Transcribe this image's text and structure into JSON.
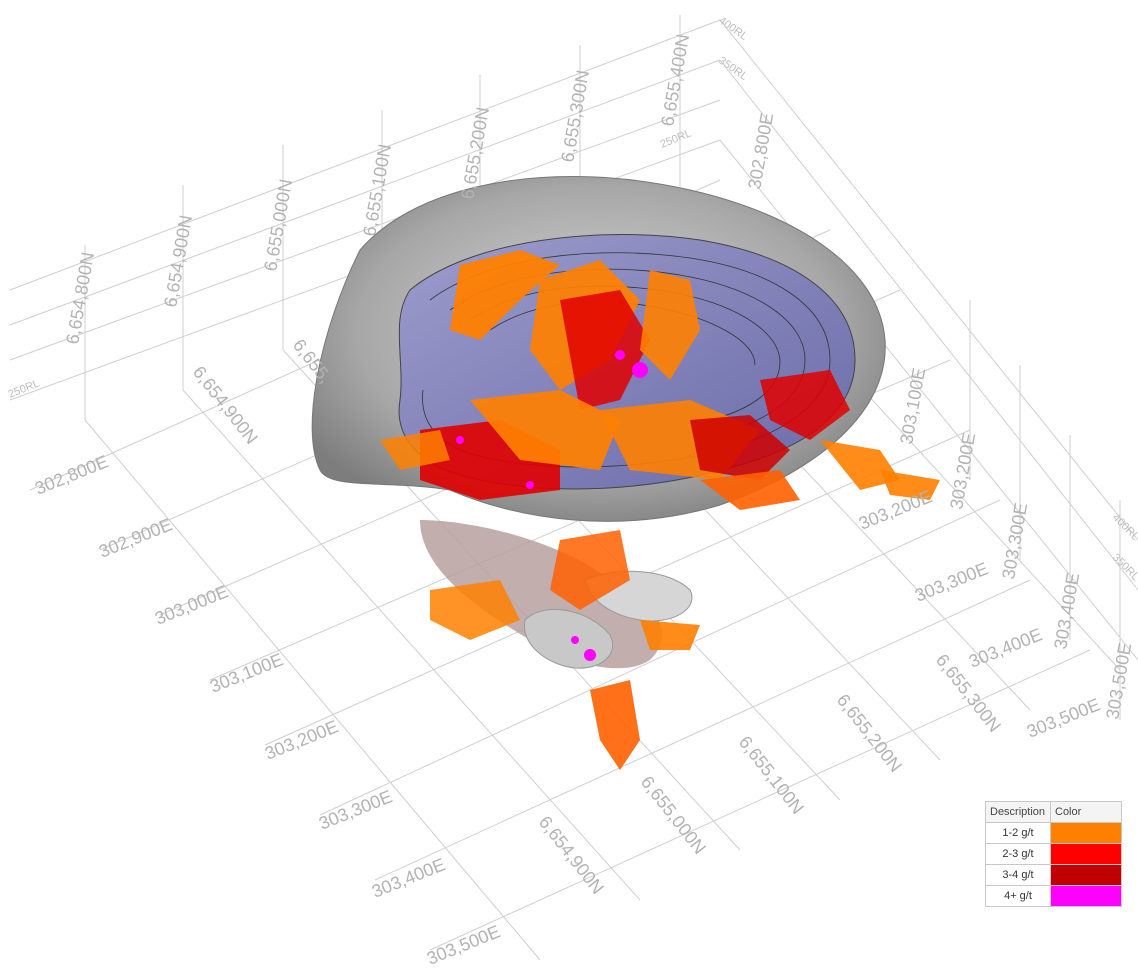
{
  "north_labels_top": [
    "6,654,800N",
    "6,654,900N",
    "6,655,000N",
    "6,655,100N",
    "6,655,200N",
    "6,655,300N",
    "6,655,400N"
  ],
  "north_labels_bottom": [
    "6,654,900N",
    "6,655,000N",
    "6,655,100N",
    "6,655,200N",
    "6,655,300N"
  ],
  "north_label_partial": "6,655,",
  "east_labels_left": [
    "302,800E",
    "302,900E",
    "303,000E",
    "303,100E",
    "303,200E",
    "303,300E",
    "303,400E",
    "303,500E"
  ],
  "east_labels_right": [
    "303,200E",
    "303,300E",
    "303,400E",
    "303,500E"
  ],
  "east_labels_vertical": [
    "302,800E",
    "302,900E",
    "303,000E",
    "303,100E",
    "303,200E",
    "303,300E",
    "303,400E",
    "303,500E"
  ],
  "rl_labels": [
    "400RL",
    "350RL",
    "250RL",
    "250RL",
    "400RL",
    "350RL"
  ],
  "legend": {
    "header_description": "Description",
    "header_color": "Color",
    "rows": [
      {
        "description": "1-2 g/t",
        "color": "#ff8000"
      },
      {
        "description": "2-3 g/t",
        "color": "#ff0000"
      },
      {
        "description": "3-4 g/t",
        "color": "#c00000"
      },
      {
        "description": "4+ g/t",
        "color": "#ff00ff"
      }
    ]
  },
  "colors": {
    "pit_shell": "#a9a9a9",
    "pit_design": "#8080c0",
    "grade_1_2": "#ff8000",
    "grade_2_3": "#ff0000",
    "grade_3_4": "#c00000",
    "grade_4_plus": "#ff00ff"
  }
}
